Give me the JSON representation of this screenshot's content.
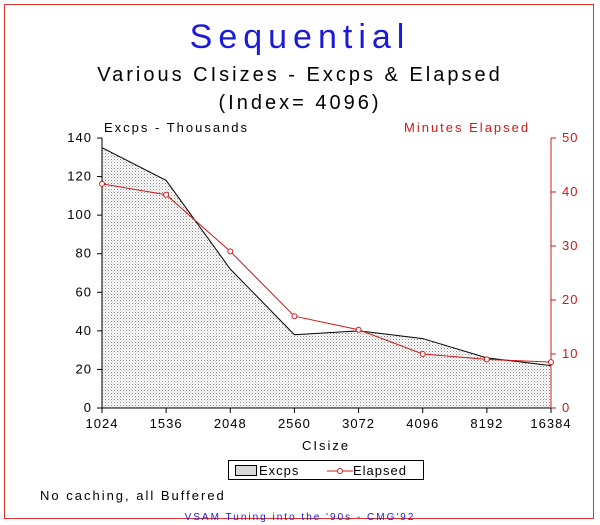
{
  "chart_data": {
    "type": "line",
    "title": "Sequential",
    "subtitle": "Various CIsizes - Excps & Elapsed",
    "subtitle2": "(Index= 4096)",
    "xlabel": "CIsize",
    "ylabel_left": "Excps - Thousands",
    "ylabel_right": "Minutes Elapsed",
    "categories": [
      "1024",
      "1536",
      "2048",
      "2560",
      "3072",
      "4096",
      "8192",
      "16384"
    ],
    "ylim_left": [
      0,
      140
    ],
    "yticks_left": [
      0,
      20,
      40,
      60,
      80,
      100,
      120,
      140
    ],
    "ylim_right": [
      0,
      50
    ],
    "yticks_right": [
      0,
      10,
      20,
      30,
      40,
      50
    ],
    "series": [
      {
        "name": "Excps",
        "axis": "left",
        "style": "area",
        "values": [
          135,
          118,
          72,
          38,
          40,
          36,
          26,
          22
        ]
      },
      {
        "name": "Elapsed",
        "axis": "right",
        "style": "line",
        "values": [
          41.5,
          39.5,
          29,
          17,
          14.5,
          10,
          9,
          8.5
        ]
      }
    ],
    "legend": "bottom-center",
    "colors": {
      "area_fill": "#d8d8d8",
      "area_line": "#000000",
      "elapsed_line": "#d01818",
      "title": "#1a1ad8"
    }
  },
  "note": "No caching, all Buffered",
  "footer": "VSAM Tuning into the '90s - CMG'92"
}
